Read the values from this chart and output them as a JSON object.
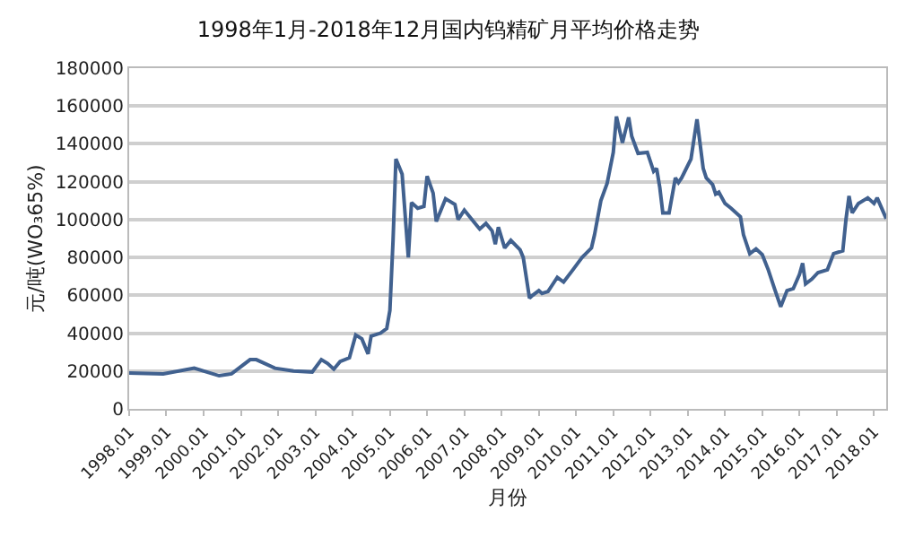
{
  "chart_data": {
    "type": "line",
    "title": "1998年1月-2018年12月国内钨精矿月平均价格走势",
    "xlabel": "月份",
    "ylabel": "元/吨(WO₃65%)",
    "x": [
      "1998-01",
      "1998-12",
      "1999-10",
      "2000-06",
      "2000-10",
      "2001-04",
      "2001-06",
      "2001-12",
      "2002-06",
      "2002-12",
      "2003-03",
      "2003-05",
      "2003-07",
      "2003-09",
      "2003-12",
      "2004-02",
      "2004-04",
      "2004-06",
      "2004-07",
      "2004-10",
      "2004-12",
      "2005-01",
      "2005-02",
      "2005-03",
      "2005-05",
      "2005-07",
      "2005-08",
      "2005-10",
      "2005-12",
      "2006-01",
      "2006-03",
      "2006-04",
      "2006-07",
      "2006-10",
      "2006-11",
      "2007-01",
      "2007-04",
      "2007-06",
      "2007-08",
      "2007-10",
      "2007-11",
      "2007-12",
      "2008-02",
      "2008-04",
      "2008-07",
      "2008-08",
      "2008-10",
      "2008-11",
      "2009-01",
      "2009-02",
      "2009-04",
      "2009-07",
      "2009-09",
      "2009-12",
      "2010-03",
      "2010-06",
      "2010-07",
      "2010-09",
      "2010-11",
      "2011-01",
      "2011-02",
      "2011-04",
      "2011-06",
      "2011-07",
      "2011-09",
      "2011-12",
      "2012-02",
      "2012-03",
      "2012-04",
      "2012-05",
      "2012-07",
      "2012-09",
      "2012-10",
      "2012-11",
      "2013-02",
      "2013-04",
      "2013-06",
      "2013-07",
      "2013-09",
      "2013-10",
      "2013-11",
      "2014-01",
      "2014-03",
      "2014-06",
      "2014-07",
      "2014-09",
      "2014-11",
      "2015-01",
      "2015-03",
      "2015-05",
      "2015-07",
      "2015-09",
      "2015-11",
      "2016-01",
      "2016-02",
      "2016-03",
      "2016-05",
      "2016-07",
      "2016-10",
      "2016-12",
      "2017-03",
      "2017-04",
      "2017-05",
      "2017-06",
      "2017-08",
      "2017-11",
      "2018-01",
      "2018-02",
      "2018-05"
    ],
    "series": [
      {
        "color": "#41618f",
        "values": [
          19000,
          18500,
          21500,
          17500,
          18500,
          26000,
          26000,
          21500,
          20000,
          19500,
          26000,
          24000,
          21000,
          25000,
          27000,
          39000,
          37000,
          29000,
          38500,
          40000,
          42500,
          52000,
          89000,
          132000,
          124000,
          80000,
          109000,
          106000,
          107000,
          123000,
          114000,
          99000,
          111000,
          108000,
          100000,
          105000,
          99000,
          95000,
          98000,
          94000,
          87000,
          96000,
          85000,
          89000,
          84000,
          80000,
          58500,
          60000,
          62500,
          61000,
          62000,
          69500,
          67000,
          73500,
          80000,
          85000,
          92000,
          110000,
          119000,
          135500,
          154500,
          140500,
          154000,
          144000,
          135000,
          135500,
          125500,
          127000,
          117000,
          103500,
          103500,
          122000,
          119500,
          122000,
          132000,
          153000,
          127000,
          122000,
          118500,
          113500,
          114500,
          108500,
          106000,
          101500,
          92000,
          82000,
          84500,
          81500,
          73500,
          63500,
          54000,
          62500,
          63500,
          71000,
          77000,
          66000,
          68500,
          72000,
          73500,
          82000,
          83500,
          100000,
          112500,
          103500,
          108500,
          111500,
          108500,
          111500,
          100500
        ]
      }
    ],
    "xlim": [
      "1998-01",
      "2018-05"
    ],
    "xticks": [
      {
        "value": "1998-01",
        "label": "1998.01"
      },
      {
        "value": "1999-01",
        "label": "1999.01"
      },
      {
        "value": "2000-01",
        "label": "2000.01"
      },
      {
        "value": "2001-01",
        "label": "2001.01"
      },
      {
        "value": "2002-01",
        "label": "2002.01"
      },
      {
        "value": "2003-01",
        "label": "2003.01"
      },
      {
        "value": "2004-01",
        "label": "2004.01"
      },
      {
        "value": "2005-01",
        "label": "2005.01"
      },
      {
        "value": "2006-01",
        "label": "2006.01"
      },
      {
        "value": "2007-01",
        "label": "2007.01"
      },
      {
        "value": "2008-01",
        "label": "2008.01"
      },
      {
        "value": "2009-01",
        "label": "2009.01"
      },
      {
        "value": "2010-01",
        "label": "2010.01"
      },
      {
        "value": "2011-01",
        "label": "2011.01"
      },
      {
        "value": "2012-01",
        "label": "2012.01"
      },
      {
        "value": "2013-01",
        "label": "2013.01"
      },
      {
        "value": "2014-01",
        "label": "2014.01"
      },
      {
        "value": "2015-01",
        "label": "2015.01"
      },
      {
        "value": "2016-01",
        "label": "2016.01"
      },
      {
        "value": "2017-01",
        "label": "2017.01"
      },
      {
        "value": "2018-01",
        "label": "2018.01"
      }
    ],
    "ylim": [
      0,
      180000
    ],
    "yticks": [
      0,
      20000,
      40000,
      60000,
      80000,
      100000,
      120000,
      140000,
      160000,
      180000
    ],
    "grid": "y",
    "marker": "none",
    "line_style": "solid"
  }
}
